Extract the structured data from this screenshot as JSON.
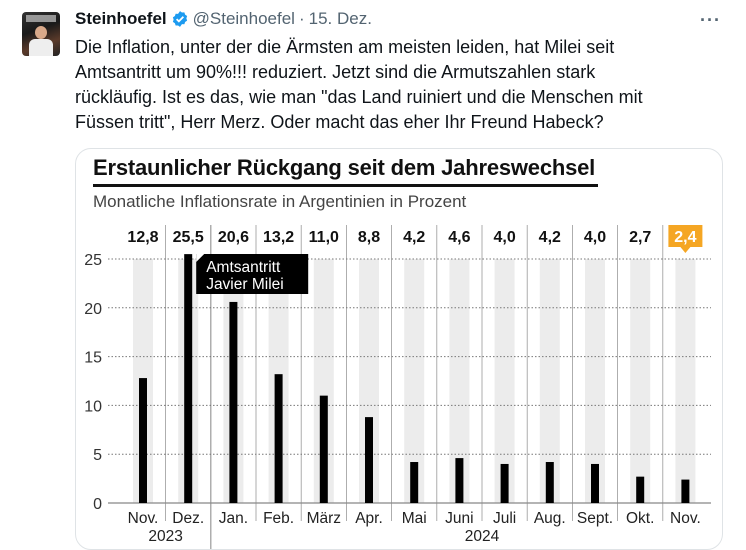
{
  "tweet": {
    "author_name": "Steinhoefel",
    "handle": "@Steinhoefel",
    "separator": "·",
    "date": "15. Dez.",
    "more_icon": "more-horizontal-icon",
    "lines": [
      "Die Inflation, unter der die Ärmsten am meisten leiden, hat Milei seit",
      "Amtsantritt um 90%!!! reduziert. Jetzt sind die Armutszahlen stark",
      "rückläufig. Ist es das, wie man \"das Land ruiniert und die Menschen mit",
      "Füssen tritt\", Herr Merz. Oder macht das eher Ihr Freund Habeck?"
    ]
  },
  "colors": {
    "accent": "#f5a623",
    "bar": "#000000",
    "stripe": "#ececec",
    "verified": "#1d9bf0"
  },
  "chart_data": {
    "type": "bar",
    "title": "Erstaunlicher Rückgang seit dem Jahreswechsel",
    "subtitle": "Monatliche Inflationsrate in Argentinien in Prozent",
    "categories": [
      "Nov.",
      "Dez.",
      "Jan.",
      "Feb.",
      "März",
      "Apr.",
      "Mai",
      "Juni",
      "Juli",
      "Aug.",
      "Sept.",
      "Okt.",
      "Nov."
    ],
    "values": [
      12.8,
      25.5,
      20.6,
      13.2,
      11.0,
      8.8,
      4.2,
      4.6,
      4.0,
      4.2,
      4.0,
      2.7,
      2.4
    ],
    "value_labels": [
      "12,8",
      "25,5",
      "20,6",
      "13,2",
      "11,0",
      "8,8",
      "4,2",
      "4,6",
      "4,0",
      "4,2",
      "4,0",
      "2,7",
      "2,4"
    ],
    "highlight_index": 12,
    "years": [
      {
        "label": "2023",
        "from": 0,
        "to": 1
      },
      {
        "label": "2024",
        "from": 2,
        "to": 12
      }
    ],
    "yticks": [
      0,
      5,
      10,
      15,
      20,
      25
    ],
    "ylim": [
      0,
      25
    ],
    "annotation": {
      "lines": [
        "Amtsantritt",
        "Javier Milei"
      ],
      "index": 1
    },
    "grid": true,
    "xlabel": "",
    "ylabel": ""
  }
}
